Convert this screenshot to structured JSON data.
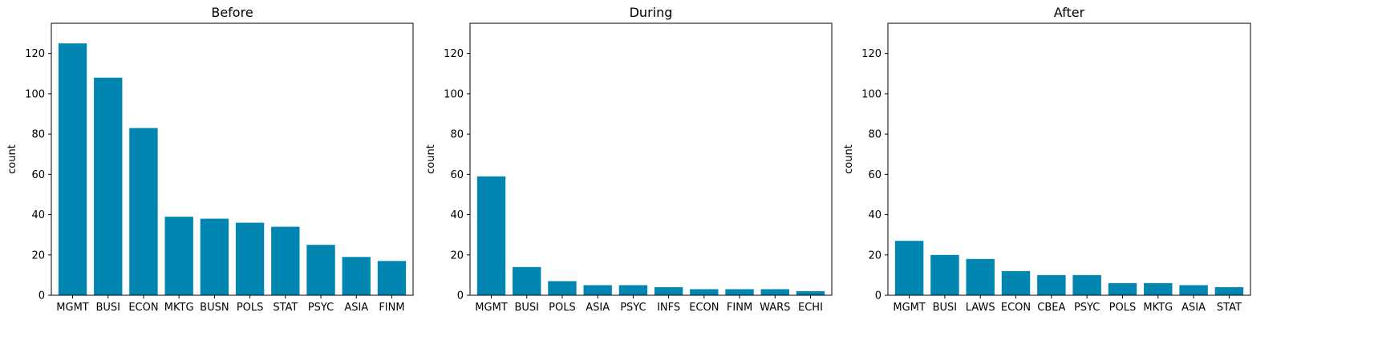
{
  "chart_data": [
    {
      "type": "bar",
      "title": "Before",
      "ylabel": "count",
      "xlabel": "",
      "ylim": [
        0,
        135
      ],
      "yticks": [
        0,
        20,
        40,
        60,
        80,
        100,
        120
      ],
      "categories": [
        "MGMT",
        "BUSI",
        "ECON",
        "MKTG",
        "BUSN",
        "POLS",
        "STAT",
        "PSYC",
        "ASIA",
        "FINM"
      ],
      "values": [
        125,
        108,
        83,
        39,
        38,
        36,
        34,
        25,
        19,
        17
      ],
      "color": "#0086b0",
      "grid": false
    },
    {
      "type": "bar",
      "title": "During",
      "ylabel": "count",
      "xlabel": "",
      "ylim": [
        0,
        135
      ],
      "yticks": [
        0,
        20,
        40,
        60,
        80,
        100,
        120
      ],
      "categories": [
        "MGMT",
        "BUSI",
        "POLS",
        "ASIA",
        "PSYC",
        "INFS",
        "ECON",
        "FINM",
        "WARS",
        "ECHI"
      ],
      "values": [
        59,
        14,
        7,
        5,
        5,
        4,
        3,
        3,
        3,
        2
      ],
      "color": "#0086b0",
      "grid": false
    },
    {
      "type": "bar",
      "title": "After",
      "ylabel": "count",
      "xlabel": "",
      "ylim": [
        0,
        135
      ],
      "yticks": [
        0,
        20,
        40,
        60,
        80,
        100,
        120
      ],
      "categories": [
        "MGMT",
        "BUSI",
        "LAWS",
        "ECON",
        "CBEA",
        "PSYC",
        "POLS",
        "MKTG",
        "ASIA",
        "STAT"
      ],
      "values": [
        27,
        20,
        18,
        12,
        10,
        10,
        6,
        6,
        5,
        4
      ],
      "color": "#0086b0",
      "grid": false
    }
  ]
}
